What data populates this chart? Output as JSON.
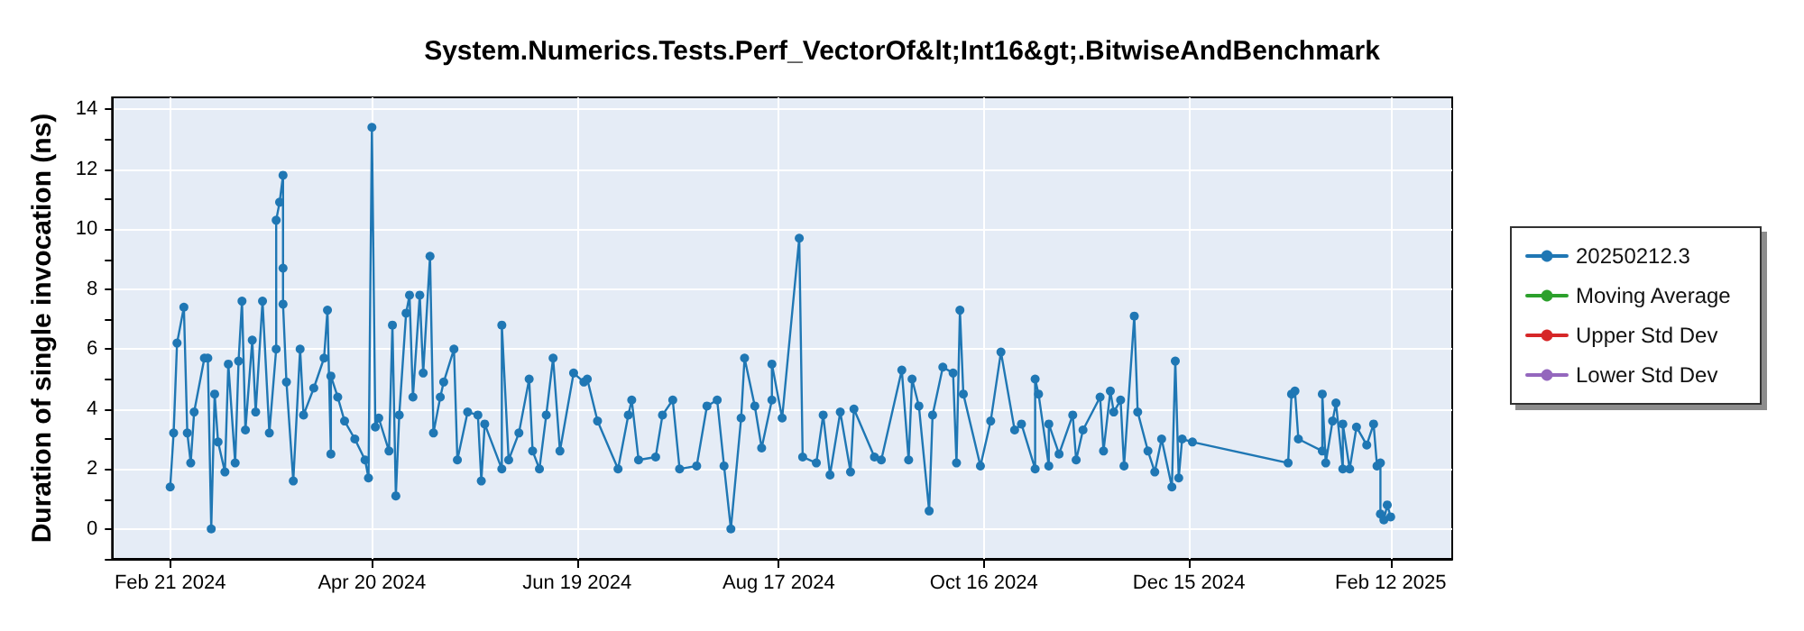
{
  "chart_data": {
    "type": "line",
    "title": "System.Numerics.Tests.Perf_VectorOf&lt;Int16&gt;.BitwiseAndBenchmark",
    "ylabel": "Duration of single invocation (ns)",
    "xlim": [
      "2024-02-04",
      "2025-03-02"
    ],
    "xticks": [
      {
        "value": "2024-02-21",
        "label": "Feb 21 2024"
      },
      {
        "value": "2024-04-20",
        "label": "Apr 20 2024"
      },
      {
        "value": "2024-06-19",
        "label": "Jun 19 2024"
      },
      {
        "value": "2024-08-17",
        "label": "Aug 17 2024"
      },
      {
        "value": "2024-10-16",
        "label": "Oct 16 2024"
      },
      {
        "value": "2024-12-15",
        "label": "Dec 15 2024"
      },
      {
        "value": "2025-02-12",
        "label": "Feb 12 2025"
      }
    ],
    "ylim": [
      -1,
      14.4
    ],
    "yticks": [
      {
        "value": -1,
        "label": null
      },
      0,
      {
        "value": 1,
        "label": null
      },
      2,
      {
        "value": 3,
        "label": null
      },
      4,
      {
        "value": 5,
        "label": null
      },
      6,
      {
        "value": 7,
        "label": null
      },
      8,
      {
        "value": 9,
        "label": null
      },
      10,
      {
        "value": 11,
        "label": null
      },
      12,
      {
        "value": 13,
        "label": null
      },
      14
    ],
    "grid": true,
    "legend": "right",
    "marker": "circle",
    "line_style": "solid",
    "series": [
      {
        "name": "20250212.3",
        "color": "#1f77b4",
        "x": [
          "2024-02-21",
          "2024-02-22",
          "2024-02-23",
          "2024-02-25",
          "2024-02-26",
          "2024-02-27",
          "2024-02-28",
          "2024-03-02",
          "2024-03-03",
          "2024-03-04",
          "2024-03-05",
          "2024-03-06",
          "2024-03-08",
          "2024-03-09",
          "2024-03-11",
          "2024-03-12",
          "2024-03-13",
          "2024-03-14",
          "2024-03-16",
          "2024-03-17",
          "2024-03-19",
          "2024-03-21",
          "2024-03-23",
          "2024-03-23",
          "2024-03-24",
          "2024-03-25",
          "2024-03-25",
          "2024-03-25",
          "2024-03-26",
          "2024-03-28",
          "2024-03-30",
          "2024-03-31",
          "2024-04-03",
          "2024-04-06",
          "2024-04-07",
          "2024-04-08",
          "2024-04-08",
          "2024-04-10",
          "2024-04-12",
          "2024-04-15",
          "2024-04-18",
          "2024-04-19",
          "2024-04-20",
          "2024-04-21",
          "2024-04-22",
          "2024-04-25",
          "2024-04-26",
          "2024-04-27",
          "2024-04-28",
          "2024-04-30",
          "2024-05-01",
          "2024-05-02",
          "2024-05-04",
          "2024-05-05",
          "2024-05-07",
          "2024-05-08",
          "2024-05-10",
          "2024-05-11",
          "2024-05-14",
          "2024-05-15",
          "2024-05-18",
          "2024-05-21",
          "2024-05-22",
          "2024-05-23",
          "2024-05-28",
          "2024-05-28",
          "2024-05-30",
          "2024-06-02",
          "2024-06-05",
          "2024-06-06",
          "2024-06-08",
          "2024-06-10",
          "2024-06-12",
          "2024-06-14",
          "2024-06-18",
          "2024-06-21",
          "2024-06-22",
          "2024-06-25",
          "2024-07-01",
          "2024-07-04",
          "2024-07-05",
          "2024-07-07",
          "2024-07-12",
          "2024-07-14",
          "2024-07-17",
          "2024-07-19",
          "2024-07-24",
          "2024-07-27",
          "2024-07-30",
          "2024-08-01",
          "2024-08-03",
          "2024-08-06",
          "2024-08-07",
          "2024-08-10",
          "2024-08-12",
          "2024-08-15",
          "2024-08-15",
          "2024-08-18",
          "2024-08-23",
          "2024-08-24",
          "2024-08-28",
          "2024-08-30",
          "2024-09-01",
          "2024-09-04",
          "2024-09-07",
          "2024-09-08",
          "2024-09-14",
          "2024-09-16",
          "2024-09-22",
          "2024-09-24",
          "2024-09-25",
          "2024-09-27",
          "2024-09-30",
          "2024-10-01",
          "2024-10-04",
          "2024-10-07",
          "2024-10-08",
          "2024-10-09",
          "2024-10-10",
          "2024-10-15",
          "2024-10-18",
          "2024-10-21",
          "2024-10-25",
          "2024-10-27",
          "2024-10-31",
          "2024-10-31",
          "2024-11-01",
          "2024-11-04",
          "2024-11-04",
          "2024-11-07",
          "2024-11-11",
          "2024-11-12",
          "2024-11-14",
          "2024-11-19",
          "2024-11-20",
          "2024-11-22",
          "2024-11-23",
          "2024-11-25",
          "2024-11-26",
          "2024-11-29",
          "2024-11-30",
          "2024-12-03",
          "2024-12-05",
          "2024-12-07",
          "2024-12-10",
          "2024-12-11",
          "2024-12-12",
          "2024-12-13",
          "2024-12-16",
          "2025-01-13",
          "2025-01-14",
          "2025-01-15",
          "2025-01-16",
          "2025-01-23",
          "2025-01-23",
          "2025-01-24",
          "2025-01-26",
          "2025-01-27",
          "2025-01-29",
          "2025-01-29",
          "2025-01-31",
          "2025-02-02",
          "2025-02-05",
          "2025-02-07",
          "2025-02-08",
          "2025-02-09",
          "2025-02-09",
          "2025-02-10",
          "2025-02-11",
          "2025-02-12"
        ],
        "values": [
          1.4,
          3.2,
          6.2,
          7.4,
          3.2,
          2.2,
          3.9,
          5.7,
          5.7,
          0,
          4.5,
          2.9,
          1.9,
          5.5,
          2.2,
          5.6,
          7.6,
          3.3,
          6.3,
          3.9,
          7.6,
          3.2,
          6.0,
          10.3,
          10.9,
          11.8,
          8.7,
          7.5,
          4.9,
          1.6,
          6.0,
          3.8,
          4.7,
          5.7,
          7.3,
          2.5,
          5.1,
          4.4,
          3.6,
          3.0,
          2.3,
          1.7,
          13.4,
          3.4,
          3.7,
          2.6,
          6.8,
          1.1,
          3.8,
          7.2,
          7.8,
          4.4,
          7.8,
          5.2,
          9.1,
          3.2,
          4.4,
          4.9,
          6.0,
          2.3,
          3.9,
          3.8,
          1.6,
          3.5,
          2.0,
          6.8,
          2.3,
          3.2,
          5.0,
          2.6,
          2.0,
          3.8,
          5.7,
          2.6,
          5.2,
          4.9,
          5.0,
          3.6,
          2.0,
          3.8,
          4.3,
          2.3,
          2.4,
          3.8,
          4.3,
          2.0,
          2.1,
          4.1,
          4.3,
          2.1,
          0,
          3.7,
          5.7,
          4.1,
          2.7,
          4.3,
          5.5,
          3.7,
          9.7,
          2.4,
          2.2,
          3.8,
          1.8,
          3.9,
          1.9,
          4.0,
          2.4,
          2.3,
          5.3,
          2.3,
          5.0,
          4.1,
          0.6,
          3.8,
          5.4,
          5.2,
          2.2,
          7.3,
          4.5,
          2.1,
          3.6,
          5.9,
          3.3,
          3.5,
          2.0,
          5.0,
          4.5,
          2.1,
          3.5,
          2.5,
          3.8,
          2.3,
          3.3,
          4.4,
          2.6,
          4.6,
          3.9,
          4.3,
          2.1,
          7.1,
          3.9,
          2.6,
          1.9,
          3.0,
          1.4,
          5.6,
          1.7,
          3.0,
          2.9,
          2.2,
          4.5,
          4.6,
          3.0,
          2.6,
          4.5,
          2.2,
          3.6,
          4.2,
          2.0,
          3.5,
          2.0,
          3.4,
          2.8,
          3.5,
          2.1,
          2.2,
          0.5,
          0.3,
          0.8,
          0.4
        ]
      },
      {
        "name": "Moving Average",
        "color": "#2ca02c"
      },
      {
        "name": "Upper Std Dev",
        "color": "#d62728"
      },
      {
        "name": "Lower Std Dev",
        "color": "#9467bd"
      }
    ]
  }
}
